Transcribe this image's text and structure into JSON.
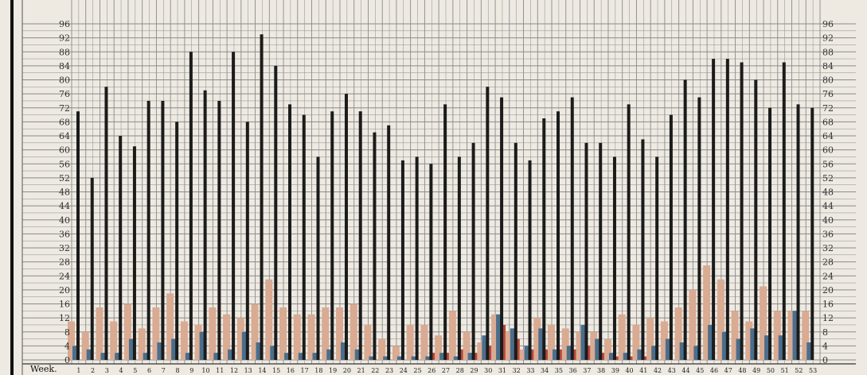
{
  "chart_data": {
    "type": "bar",
    "xlabel": "Week.",
    "ylim": [
      0,
      96
    ],
    "y_ticks": [
      0,
      4,
      8,
      12,
      16,
      20,
      24,
      28,
      32,
      36,
      40,
      44,
      48,
      52,
      56,
      60,
      64,
      68,
      72,
      76,
      80,
      84,
      88,
      92,
      96
    ],
    "grid": true,
    "categories": [
      "1",
      "2",
      "3",
      "4",
      "5",
      "6",
      "7",
      "8",
      "9",
      "10",
      "11",
      "12",
      "13",
      "14",
      "15",
      "16",
      "17",
      "18",
      "19",
      "20",
      "21",
      "22",
      "23",
      "24",
      "25",
      "26",
      "27",
      "28",
      "29",
      "30",
      "31",
      "32",
      "33",
      "34",
      "35",
      "36",
      "37",
      "38",
      "39",
      "40",
      "41",
      "42",
      "43",
      "44",
      "45",
      "46",
      "47",
      "48",
      "49",
      "50",
      "51",
      "52",
      "53"
    ],
    "series": [
      {
        "color": "#1b1b1b",
        "values": [
          71,
          52,
          78,
          64,
          61,
          74,
          74,
          68,
          88,
          77,
          74,
          88,
          68,
          93,
          84,
          73,
          70,
          58,
          71,
          76,
          71,
          65,
          67,
          57,
          58,
          56,
          73,
          58,
          62,
          78,
          75,
          62,
          57,
          69,
          71,
          75,
          62,
          62,
          58,
          73,
          63,
          58,
          70,
          80,
          75,
          86,
          86,
          85,
          80,
          72,
          85,
          73,
          72
        ]
      },
      {
        "color": "#d9ab92",
        "values": [
          11,
          8,
          15,
          11,
          16,
          9,
          15,
          19,
          11,
          10,
          15,
          13,
          12,
          16,
          23,
          15,
          13,
          13,
          15,
          15,
          16,
          10,
          6,
          4,
          10,
          10,
          7,
          14,
          8,
          5,
          13,
          8,
          3,
          12,
          10,
          9,
          8,
          8,
          6,
          13,
          10,
          12,
          11,
          15,
          20,
          27,
          23,
          14,
          11,
          21,
          14,
          14,
          14
        ]
      },
      {
        "color": "#4a6e8c",
        "values": [
          4,
          3,
          2,
          2,
          6,
          2,
          5,
          6,
          2,
          8,
          2,
          3,
          8,
          5,
          4,
          2,
          2,
          2,
          3,
          5,
          3,
          1,
          1,
          1,
          1,
          1,
          2,
          1,
          2,
          7,
          13,
          9,
          4,
          9,
          3,
          4,
          10,
          6,
          2,
          2,
          3,
          4,
          6,
          5,
          4,
          10,
          8,
          6,
          9,
          7,
          7,
          14,
          5
        ]
      },
      {
        "color": "#b8463a",
        "values": [
          0,
          0,
          0,
          0,
          0,
          0,
          0,
          0,
          0,
          0,
          0,
          0,
          0,
          0,
          0,
          0,
          0,
          0,
          0,
          0,
          0,
          0,
          0,
          0,
          0,
          2,
          2,
          3,
          2,
          4,
          10,
          6,
          3,
          3,
          3,
          3,
          4,
          2,
          1,
          1,
          1,
          0,
          0,
          0,
          0,
          0,
          0,
          0,
          0,
          0,
          0,
          0,
          0
        ]
      }
    ]
  }
}
